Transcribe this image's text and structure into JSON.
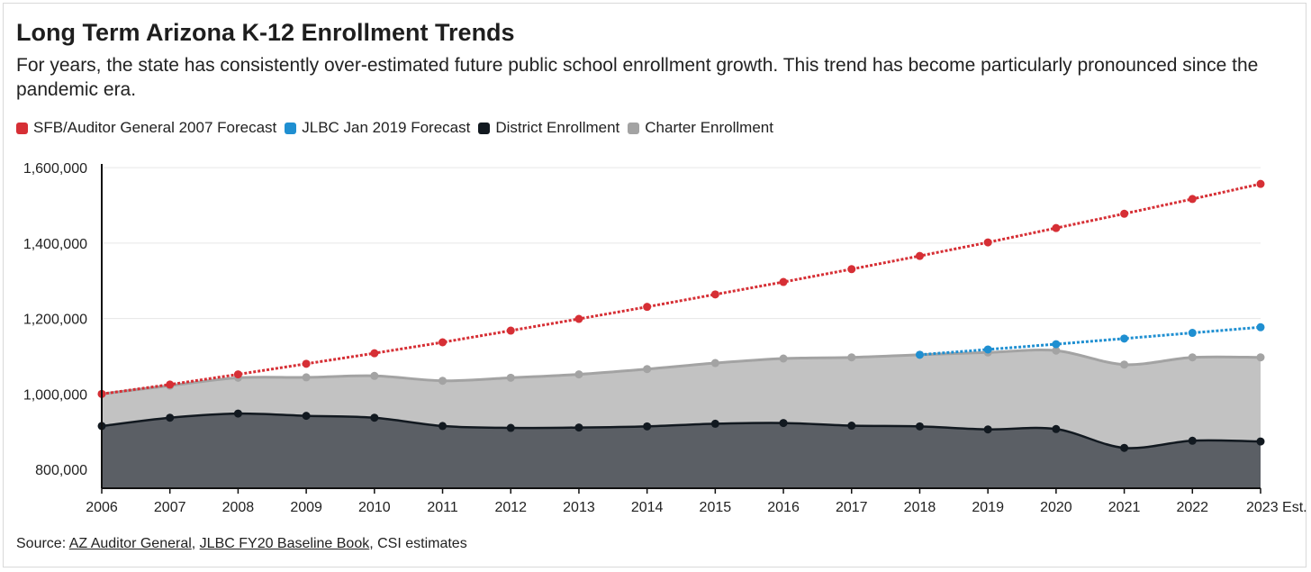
{
  "chart_data": {
    "type": "area",
    "title": "Long Term Arizona K-12 Enrollment Trends",
    "subtitle": "For years, the state has consistently over-estimated future public school enrollment growth. This trend has become particularly pronounced since the pandemic era.",
    "categories": [
      "2006",
      "2007",
      "2008",
      "2009",
      "2010",
      "2011",
      "2012",
      "2013",
      "2014",
      "2015",
      "2016",
      "2017",
      "2018",
      "2019",
      "2020",
      "2021",
      "2022",
      "2023 Est."
    ],
    "y_ticks": [
      "1,600,000",
      "1,400,000",
      "1,200,000",
      "1,000,000",
      "800,000"
    ],
    "y_tick_values": [
      1600000,
      1400000,
      1200000,
      1000000,
      800000
    ],
    "ylim": [
      750000,
      1610000
    ],
    "grid": true,
    "legend_position": "top-left",
    "series": [
      {
        "name": "SFB/Auditor General 2007 Forecast",
        "color": "#d62f35",
        "style": "dotted-line",
        "values": [
          1000000,
          1025000,
          1052000,
          1080000,
          1108000,
          1137000,
          1168000,
          1199000,
          1231000,
          1264000,
          1297000,
          1331000,
          1366000,
          1402000,
          1440000,
          1478000,
          1517000,
          1557000
        ]
      },
      {
        "name": "JLBC Jan 2019 Forecast",
        "color": "#1f8fd1",
        "style": "dotted-line",
        "values": [
          null,
          null,
          null,
          null,
          null,
          null,
          null,
          null,
          null,
          null,
          null,
          null,
          1104000,
          1118000,
          1132000,
          1147000,
          1162000,
          1177000
        ]
      },
      {
        "name": "District Enrollment",
        "color": "#121920",
        "style": "area",
        "values": [
          915000,
          937000,
          948000,
          942000,
          937000,
          915000,
          910000,
          911000,
          914000,
          921000,
          923000,
          916000,
          914000,
          906000,
          907000,
          857000,
          876000,
          874000
        ]
      },
      {
        "name": "Charter Enrollment",
        "color": "#a3a3a3",
        "style": "stacked-area",
        "values": [
          1000000,
          1022000,
          1043000,
          1044000,
          1048000,
          1035000,
          1043000,
          1052000,
          1066000,
          1082000,
          1094000,
          1097000,
          1104000,
          1110000,
          1115000,
          1078000,
          1097000,
          1097000
        ]
      }
    ]
  },
  "source": {
    "prefix": "Source: ",
    "link1": "AZ Auditor General",
    "sep1": ", ",
    "link2": "JLBC FY20 Baseline Book",
    "suffix": ", CSI estimates"
  }
}
